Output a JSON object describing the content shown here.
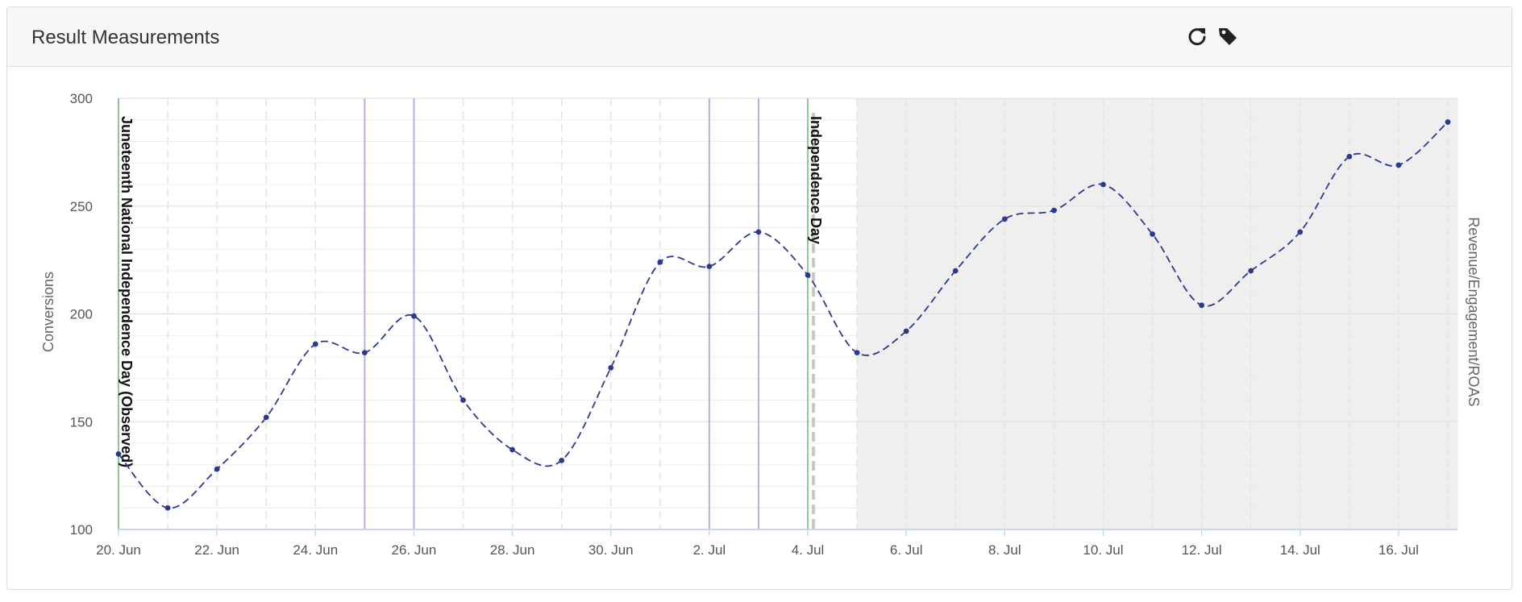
{
  "panel": {
    "title": "Result Measurements",
    "icons": [
      "refresh-icon",
      "tag-icon"
    ]
  },
  "chart_data": {
    "type": "line",
    "ylabel": "Conversions",
    "y2label": "Revenue/Engagement/ROAS",
    "ylim": [
      100,
      300
    ],
    "yticks": [
      100,
      150,
      200,
      250,
      300
    ],
    "xlim": [
      "2023-06-20",
      "2023-07-17"
    ],
    "xticks": [
      {
        "date": "2023-06-20",
        "label": "20. Jun"
      },
      {
        "date": "2023-06-22",
        "label": "22. Jun"
      },
      {
        "date": "2023-06-24",
        "label": "24. Jun"
      },
      {
        "date": "2023-06-26",
        "label": "26. Jun"
      },
      {
        "date": "2023-06-28",
        "label": "28. Jun"
      },
      {
        "date": "2023-06-30",
        "label": "30. Jun"
      },
      {
        "date": "2023-07-02",
        "label": "2. Jul"
      },
      {
        "date": "2023-07-04",
        "label": "4. Jul"
      },
      {
        "date": "2023-07-06",
        "label": "6. Jul"
      },
      {
        "date": "2023-07-08",
        "label": "8. Jul"
      },
      {
        "date": "2023-07-10",
        "label": "10. Jul"
      },
      {
        "date": "2023-07-12",
        "label": "12. Jul"
      },
      {
        "date": "2023-07-14",
        "label": "14. Jul"
      },
      {
        "date": "2023-07-16",
        "label": "16. Jul"
      }
    ],
    "series": [
      {
        "color": "#2b3a8f",
        "dashed": true,
        "x": [
          "2023-06-20",
          "2023-06-21",
          "2023-06-22",
          "2023-06-23",
          "2023-06-24",
          "2023-06-25",
          "2023-06-26",
          "2023-06-27",
          "2023-06-28",
          "2023-06-29",
          "2023-06-30",
          "2023-07-01",
          "2023-07-02",
          "2023-07-03",
          "2023-07-04",
          "2023-07-05",
          "2023-07-06",
          "2023-07-07",
          "2023-07-08",
          "2023-07-09",
          "2023-07-10",
          "2023-07-11",
          "2023-07-12",
          "2023-07-13",
          "2023-07-14",
          "2023-07-15",
          "2023-07-16",
          "2023-07-17"
        ],
        "y": [
          135,
          110,
          128,
          152,
          186,
          182,
          199,
          160,
          137,
          132,
          175,
          224,
          222,
          238,
          218,
          182,
          192,
          220,
          244,
          248,
          260,
          237,
          204,
          220,
          238,
          273,
          269,
          289
        ]
      }
    ],
    "shaded_region": {
      "from": "2023-07-05",
      "to": "2023-07-17",
      "color": "#efefef"
    },
    "vertical_lines": [
      {
        "date": "2023-06-25",
        "color": "#b3b3e6"
      },
      {
        "date": "2023-06-26",
        "color": "#b3b3e6"
      },
      {
        "date": "2023-07-02",
        "color": "#b3b3e6"
      },
      {
        "date": "2023-07-03",
        "color": "#b3b3e6"
      }
    ],
    "holidays": [
      {
        "date": "2023-06-20",
        "label": "Juneteenth National Independence Day (Observed)",
        "color": "#8fc98f"
      },
      {
        "date": "2023-07-04",
        "label": "Independence Day",
        "color": "#8fc98f"
      }
    ],
    "grid": true
  }
}
